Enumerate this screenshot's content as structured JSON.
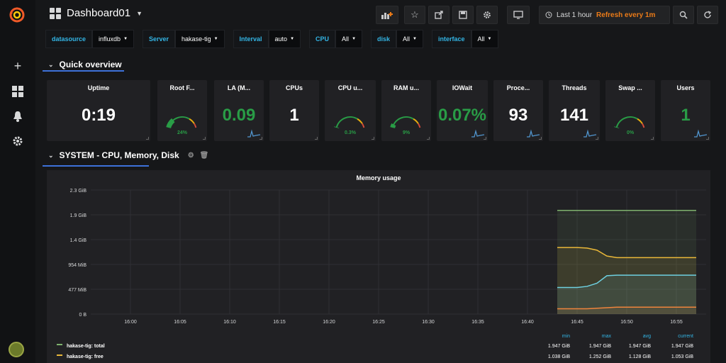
{
  "dashboard": {
    "title": "Dashboard01"
  },
  "time_range": {
    "label": "Last 1 hour",
    "refresh": "Refresh every 1m"
  },
  "variables": [
    {
      "label": "datasource",
      "value": "influxdb"
    },
    {
      "label": "Server",
      "value": "hakase-tig"
    },
    {
      "label": "Interval",
      "value": "auto"
    },
    {
      "label": "CPU",
      "value": "All"
    },
    {
      "label": "disk",
      "value": "All"
    },
    {
      "label": "interface",
      "value": "All"
    }
  ],
  "rows": {
    "quick": "Quick overview",
    "system": "SYSTEM - CPU, Memory, Disk"
  },
  "stats": [
    {
      "title": "Uptime",
      "value": "0:19",
      "color": "#ffffff",
      "kind": "text"
    },
    {
      "title": "Root F...",
      "gauge": "24%",
      "level": 0.24,
      "kind": "gauge"
    },
    {
      "title": "LA (M...",
      "value": "0.09",
      "color": "#299c46",
      "kind": "text",
      "spark": true
    },
    {
      "title": "CPUs",
      "value": "1",
      "color": "#ffffff",
      "kind": "text"
    },
    {
      "title": "CPU u...",
      "gauge": "0.3%",
      "level": 0.003,
      "kind": "gauge"
    },
    {
      "title": "RAM u...",
      "gauge": "9%",
      "level": 0.09,
      "kind": "gauge"
    },
    {
      "title": "IOWait",
      "value": "0.07%",
      "color": "#299c46",
      "kind": "text",
      "spark": true
    },
    {
      "title": "Proce...",
      "value": "93",
      "color": "#ffffff",
      "kind": "text",
      "spark": true
    },
    {
      "title": "Threads",
      "value": "141",
      "color": "#ffffff",
      "kind": "text",
      "spark": true
    },
    {
      "title": "Swap ...",
      "gauge": "0%",
      "level": 0,
      "kind": "gauge"
    },
    {
      "title": "Users",
      "value": "1",
      "color": "#299c46",
      "kind": "text",
      "spark": true
    }
  ],
  "chart_data": {
    "type": "area",
    "title": "Memory usage",
    "y_ticks": [
      "2.3 GiB",
      "1.9 GiB",
      "1.4 GiB",
      "954 MiB",
      "477 MiB",
      "0 B"
    ],
    "x_ticks": [
      "16:00",
      "16:05",
      "16:10",
      "16:15",
      "16:20",
      "16:25",
      "16:30",
      "16:35",
      "16:40",
      "16:45",
      "16:50",
      "16:55"
    ],
    "x_range": [
      "15:56",
      "16:58"
    ],
    "ylim_gib": [
      0,
      2.33
    ],
    "x": [
      "16:43",
      "16:44",
      "16:45",
      "16:46",
      "16:47",
      "16:48",
      "16:49",
      "16:50",
      "16:51",
      "16:52",
      "16:53",
      "16:54",
      "16:55",
      "16:56",
      "16:57"
    ],
    "series": [
      {
        "name": "hakase-tig: total",
        "color": "#7eb26d",
        "values": [
          1.947,
          1.947,
          1.947,
          1.947,
          1.947,
          1.947,
          1.947,
          1.947,
          1.947,
          1.947,
          1.947,
          1.947,
          1.947,
          1.947,
          1.947
        ]
      },
      {
        "color": "#eab839",
        "values": [
          1.25,
          1.25,
          1.25,
          1.24,
          1.2,
          1.09,
          1.06,
          1.06,
          1.06,
          1.06,
          1.06,
          1.06,
          1.06,
          1.06,
          1.06
        ]
      },
      {
        "color": "#6ed0e0",
        "values": [
          0.5,
          0.5,
          0.5,
          0.52,
          0.58,
          0.72,
          0.73,
          0.73,
          0.73,
          0.73,
          0.73,
          0.73,
          0.73,
          0.73,
          0.73
        ]
      },
      {
        "color": "#ef843c",
        "values": [
          0.1,
          0.1,
          0.1,
          0.1,
          0.11,
          0.12,
          0.13,
          0.13,
          0.13,
          0.13,
          0.13,
          0.13,
          0.13,
          0.13,
          0.13
        ]
      }
    ],
    "legend_columns": [
      "min",
      "max",
      "avg",
      "current"
    ],
    "legend_rows": [
      {
        "name": "hakase-tig: total",
        "color": "#7eb26d",
        "min": "1.947 GiB",
        "max": "1.947 GiB",
        "avg": "1.947 GiB",
        "current": "1.947 GiB"
      },
      {
        "name": "hakase-tig: free",
        "color": "#eab839",
        "min": "1.038 GiB",
        "max": "1.252 GiB",
        "avg": "1.128 GiB",
        "current": "1.053 GiB"
      }
    ]
  }
}
